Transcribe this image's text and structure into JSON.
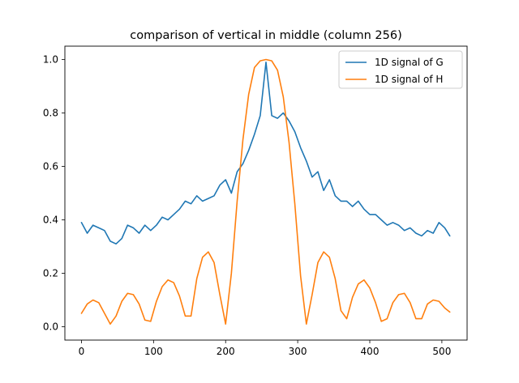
{
  "chart_data": {
    "type": "line",
    "title": "comparison of vertical in middle (column 256)",
    "xlabel": "",
    "ylabel": "",
    "xlim": [
      -23,
      535
    ],
    "ylim": [
      -0.05,
      1.05
    ],
    "x_ticks": [
      0,
      100,
      200,
      300,
      400,
      500
    ],
    "y_ticks": [
      0.0,
      0.2,
      0.4,
      0.6,
      0.8,
      1.0
    ],
    "x_tick_labels": [
      "0",
      "100",
      "200",
      "300",
      "400",
      "500"
    ],
    "y_tick_labels": [
      "0.0",
      "0.2",
      "0.4",
      "0.6",
      "0.8",
      "1.0"
    ],
    "grid": false,
    "legend_position": "top-right",
    "series": [
      {
        "name": "1D signal of G",
        "color": "#1f77b4",
        "x": [
          0,
          8,
          16,
          24,
          32,
          40,
          48,
          56,
          64,
          72,
          80,
          88,
          96,
          104,
          112,
          120,
          128,
          136,
          144,
          152,
          160,
          168,
          176,
          184,
          192,
          200,
          208,
          216,
          224,
          232,
          240,
          248,
          256,
          264,
          272,
          280,
          288,
          296,
          304,
          312,
          320,
          328,
          336,
          344,
          352,
          360,
          368,
          376,
          384,
          392,
          400,
          408,
          416,
          424,
          432,
          440,
          448,
          456,
          464,
          472,
          480,
          488,
          496,
          504,
          511
        ],
        "y": [
          0.39,
          0.35,
          0.38,
          0.37,
          0.36,
          0.32,
          0.31,
          0.33,
          0.38,
          0.37,
          0.35,
          0.38,
          0.36,
          0.38,
          0.41,
          0.4,
          0.42,
          0.44,
          0.47,
          0.46,
          0.49,
          0.47,
          0.48,
          0.49,
          0.53,
          0.55,
          0.5,
          0.58,
          0.61,
          0.66,
          0.72,
          0.79,
          0.99,
          0.79,
          0.78,
          0.8,
          0.77,
          0.73,
          0.67,
          0.62,
          0.56,
          0.58,
          0.51,
          0.55,
          0.49,
          0.47,
          0.47,
          0.45,
          0.47,
          0.44,
          0.42,
          0.42,
          0.4,
          0.38,
          0.39,
          0.38,
          0.36,
          0.37,
          0.35,
          0.34,
          0.36,
          0.35,
          0.39,
          0.37,
          0.34
        ]
      },
      {
        "name": "1D signal of H",
        "color": "#ff7f0e",
        "x": [
          0,
          8,
          16,
          24,
          32,
          40,
          48,
          56,
          64,
          72,
          80,
          88,
          96,
          104,
          112,
          120,
          128,
          136,
          144,
          152,
          160,
          168,
          176,
          184,
          192,
          200,
          208,
          216,
          224,
          232,
          240,
          248,
          256,
          264,
          272,
          280,
          288,
          296,
          304,
          312,
          320,
          328,
          336,
          344,
          352,
          360,
          368,
          376,
          384,
          392,
          400,
          408,
          416,
          424,
          432,
          440,
          448,
          456,
          464,
          472,
          480,
          488,
          496,
          504,
          511
        ],
        "y": [
          0.05,
          0.085,
          0.1,
          0.09,
          0.05,
          0.01,
          0.04,
          0.095,
          0.125,
          0.12,
          0.085,
          0.025,
          0.02,
          0.095,
          0.15,
          0.175,
          0.165,
          0.115,
          0.04,
          0.04,
          0.18,
          0.26,
          0.28,
          0.24,
          0.12,
          0.01,
          0.2,
          0.47,
          0.7,
          0.87,
          0.97,
          0.995,
          1.0,
          0.995,
          0.96,
          0.86,
          0.69,
          0.46,
          0.19,
          0.01,
          0.12,
          0.24,
          0.28,
          0.26,
          0.18,
          0.06,
          0.03,
          0.11,
          0.16,
          0.175,
          0.145,
          0.09,
          0.02,
          0.03,
          0.09,
          0.12,
          0.125,
          0.09,
          0.03,
          0.03,
          0.085,
          0.1,
          0.095,
          0.07,
          0.055
        ]
      }
    ]
  }
}
